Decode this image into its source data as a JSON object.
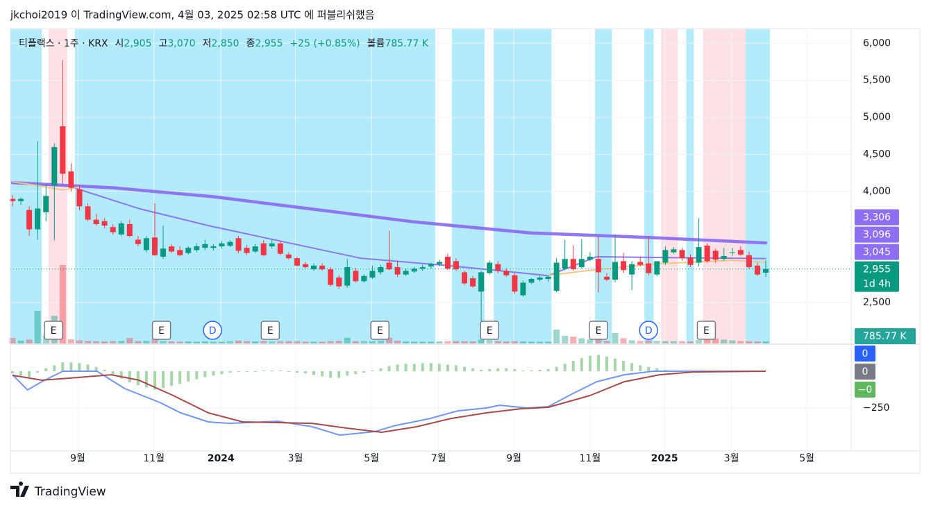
{
  "header": "jkchoi2019 이 TradingView.com, 4월 03, 2025 02:58 UTC 에 퍼블리쉬했음",
  "chart_data": {
    "type": "candlestick",
    "legend": {
      "symbol": "티플랙스 · 1주 · KRX",
      "items": [
        {
          "key": "시",
          "value": "2,905"
        },
        {
          "key": "고",
          "value": "3,070"
        },
        {
          "key": "저",
          "value": "2,850"
        },
        {
          "key": "종",
          "value": "2,955"
        }
      ],
      "change": "+25 (+0.85%)",
      "volume_key": "볼륨",
      "volume_value": "785.77 K",
      "value_color": "#089981"
    },
    "up_color": "#089981",
    "down_color": "#f23645",
    "candles": [
      [
        3900,
        3950,
        3800,
        3870
      ],
      [
        3870,
        3920,
        3820,
        3900
      ],
      [
        3750,
        3800,
        3400,
        3490
      ],
      [
        3490,
        4680,
        3350,
        3770
      ],
      [
        3720,
        4100,
        3600,
        3940
      ],
      [
        4080,
        4650,
        3340,
        4600
      ],
      [
        4880,
        5770,
        4100,
        4240
      ],
      [
        4270,
        4380,
        4000,
        4050
      ],
      [
        4030,
        4080,
        3750,
        3800
      ],
      [
        3800,
        3840,
        3600,
        3620
      ],
      [
        3620,
        3700,
        3540,
        3560
      ],
      [
        3600,
        3640,
        3500,
        3540
      ],
      [
        3520,
        3560,
        3420,
        3450
      ],
      [
        3420,
        3600,
        3400,
        3570
      ],
      [
        3560,
        3620,
        3380,
        3400
      ],
      [
        3350,
        3400,
        3260,
        3290
      ],
      [
        3210,
        3400,
        3180,
        3370
      ],
      [
        3380,
        3840,
        3130,
        3140
      ],
      [
        3120,
        3540,
        3090,
        3230
      ],
      [
        3260,
        3290,
        3170,
        3190
      ],
      [
        3210,
        3260,
        3130,
        3140
      ],
      [
        3170,
        3260,
        3150,
        3240
      ],
      [
        3210,
        3300,
        3180,
        3260
      ],
      [
        3240,
        3350,
        3210,
        3290
      ],
      [
        3240,
        3290,
        3200,
        3260
      ],
      [
        3260,
        3330,
        3230,
        3300
      ],
      [
        3270,
        3340,
        3250,
        3320
      ],
      [
        3370,
        3400,
        3170,
        3200
      ],
      [
        3240,
        3280,
        3140,
        3170
      ],
      [
        3190,
        3290,
        3170,
        3260
      ],
      [
        3300,
        3340,
        3130,
        3140
      ],
      [
        3260,
        3350,
        3230,
        3300
      ],
      [
        3300,
        3340,
        3140,
        3160
      ],
      [
        3150,
        3180,
        3080,
        3100
      ],
      [
        3100,
        3120,
        2990,
        3000
      ],
      [
        3020,
        3050,
        2960,
        2980
      ],
      [
        2950,
        3030,
        2930,
        3000
      ],
      [
        3000,
        3030,
        2930,
        2950
      ],
      [
        2950,
        2980,
        2720,
        2740
      ],
      [
        2840,
        2870,
        2690,
        2720
      ],
      [
        2730,
        3090,
        2700,
        2980
      ],
      [
        2930,
        2970,
        2770,
        2790
      ],
      [
        2790,
        2880,
        2770,
        2860
      ],
      [
        2840,
        3000,
        2820,
        2930
      ],
      [
        2910,
        3010,
        2880,
        2980
      ],
      [
        3040,
        3470,
        2940,
        2950
      ],
      [
        2980,
        3070,
        2850,
        2880
      ],
      [
        2880,
        2960,
        2860,
        2930
      ],
      [
        2920,
        2980,
        2900,
        2960
      ],
      [
        2960,
        3010,
        2930,
        2980
      ],
      [
        2990,
        3040,
        2960,
        3020
      ],
      [
        3020,
        3080,
        2990,
        3050
      ],
      [
        3120,
        3160,
        2940,
        2960
      ],
      [
        3060,
        3100,
        2930,
        2950
      ],
      [
        2910,
        2930,
        2740,
        2760
      ],
      [
        2830,
        2860,
        2700,
        2720
      ],
      [
        2650,
        2930,
        2250,
        2910
      ],
      [
        2900,
        3070,
        2880,
        3040
      ],
      [
        3020,
        3060,
        2900,
        2930
      ],
      [
        2930,
        2960,
        2850,
        2870
      ],
      [
        2870,
        2900,
        2620,
        2650
      ],
      [
        2600,
        2800,
        2580,
        2770
      ],
      [
        2770,
        2830,
        2750,
        2820
      ],
      [
        2810,
        2860,
        2790,
        2840
      ],
      [
        2820,
        2870,
        2780,
        2850
      ],
      [
        2660,
        3100,
        2640,
        3040
      ],
      [
        2960,
        3350,
        2940,
        3090
      ],
      [
        3090,
        3270,
        2930,
        2950
      ],
      [
        2980,
        3360,
        2960,
        3090
      ],
      [
        3080,
        3180,
        3060,
        3120
      ],
      [
        3090,
        3400,
        2640,
        2910
      ],
      [
        2850,
        2900,
        2790,
        2810
      ],
      [
        2810,
        3420,
        2780,
        3050
      ],
      [
        3060,
        3170,
        2900,
        2940
      ],
      [
        2880,
        3060,
        2670,
        3020
      ],
      [
        3050,
        3120,
        2990,
        3010
      ],
      [
        3030,
        3400,
        2870,
        2900
      ],
      [
        2880,
        3050,
        2860,
        3060
      ],
      [
        3040,
        3260,
        3010,
        3210
      ],
      [
        3180,
        3250,
        3160,
        3220
      ],
      [
        3210,
        3240,
        3070,
        3100
      ],
      [
        3110,
        3150,
        2980,
        3010
      ],
      [
        3040,
        3640,
        2990,
        3250
      ],
      [
        3270,
        3300,
        3040,
        3060
      ],
      [
        3200,
        3230,
        3040,
        3080
      ],
      [
        3090,
        3240,
        3060,
        3130
      ],
      [
        3170,
        3240,
        3130,
        3180
      ],
      [
        3210,
        3260,
        3130,
        3150
      ],
      [
        3140,
        3190,
        2960,
        2980
      ],
      [
        3000,
        3040,
        2860,
        2880
      ],
      [
        2905,
        3070,
        2850,
        2955
      ]
    ],
    "xlim": [
      -0.25,
      100.2
    ],
    "xticks": [
      {
        "value": 7.8,
        "label": "9월"
      },
      {
        "value": 16.9,
        "label": "11월"
      },
      {
        "value": 24.9,
        "label": "2024"
      },
      {
        "value": 33.8,
        "label": "3월"
      },
      {
        "value": 42.9,
        "label": "5월"
      },
      {
        "value": 50.9,
        "label": "7월"
      },
      {
        "value": 59.9,
        "label": "9월"
      },
      {
        "value": 69.0,
        "label": "11월"
      },
      {
        "value": 77.9,
        "label": "2025"
      },
      {
        "value": 85.9,
        "label": "3월"
      },
      {
        "value": 94.9,
        "label": "5월"
      }
    ],
    "ylim": [
      1950,
      6190
    ],
    "yticks": [
      {
        "value": 6000,
        "label": "6,000"
      },
      {
        "value": 5500,
        "label": "5,500"
      },
      {
        "value": 5000,
        "label": "5,000"
      },
      {
        "value": 4500,
        "label": "4,500"
      },
      {
        "value": 4000,
        "label": "4,000"
      },
      {
        "value": 2500,
        "label": "2,500"
      }
    ],
    "grid": true,
    "bands": [
      {
        "from": -0.25,
        "to": 3.5,
        "color": "#b2ebf9"
      },
      {
        "from": 4.3,
        "to": 6.55,
        "color": "#fde2e5"
      },
      {
        "from": 7.46,
        "to": 50.5,
        "color": "#b2ebf9"
      },
      {
        "from": 52.5,
        "to": 56.4,
        "color": "#b2ebf9"
      },
      {
        "from": 57.5,
        "to": 64.4,
        "color": "#b2ebf9"
      },
      {
        "from": 69.6,
        "to": 71.6,
        "color": "#b2ebf9"
      },
      {
        "from": 75.5,
        "to": 76.6,
        "color": "#b2ebf9"
      },
      {
        "from": 77.5,
        "to": 79.5,
        "color": "#fde2e5"
      },
      {
        "from": 80.5,
        "to": 81.4,
        "color": "#b2ebf9"
      },
      {
        "from": 82.5,
        "to": 83.5,
        "color": "#fde2e5"
      },
      {
        "from": 83.5,
        "to": 87.6,
        "color": "#fde2e5"
      },
      {
        "from": 87.6,
        "to": 90.5,
        "color": "#b2ebf9"
      }
    ],
    "volume": {
      "lim": [
        0,
        30000
      ],
      "last_label": "785.77 K",
      "color": "#26a69a",
      "values": [
        2100,
        1100,
        1500,
        12500,
        3000,
        10600,
        30000,
        1600,
        1200,
        1000,
        900,
        800,
        900,
        1000,
        2100,
        900,
        1000,
        1600,
        900,
        800,
        700,
        800,
        700,
        800,
        700,
        700,
        800,
        1100,
        900,
        800,
        900,
        700,
        800,
        900,
        800,
        700,
        700,
        700,
        900,
        1000,
        2200,
        900,
        800,
        900,
        1000,
        2200,
        1100,
        800,
        700,
        700,
        700,
        800,
        900,
        900,
        900,
        800,
        1500,
        1300,
        900,
        800,
        900,
        800,
        700,
        700,
        700,
        5300,
        2900,
        2600,
        2000,
        1500,
        1800,
        1000,
        4000,
        2000,
        1200,
        1000,
        1200,
        1000,
        900,
        900,
        900,
        800,
        1300,
        1500,
        1900,
        1500,
        1200,
        900,
        900,
        800,
        785.77
      ]
    },
    "moving_averages": [
      {
        "color": "#8c6ff2",
        "width": 4.5,
        "x": [
          0,
          12,
          24,
          36,
          48,
          62,
          76,
          90
        ],
        "values": [
          4120,
          4050,
          3930,
          3760,
          3590,
          3440,
          3380,
          3306
        ],
        "last_label": "3,306"
      },
      {
        "color": "#8c6ff2",
        "width": 2,
        "x": [
          0,
          6.8,
          15.1,
          23.4,
          33.3,
          41.6,
          51.6,
          64.0,
          69.8,
          81.4,
          90
        ],
        "values": [
          4110,
          4070,
          3770,
          3540,
          3300,
          3100,
          3005,
          2865,
          3120,
          3105,
          3096
        ],
        "last_label": "3,096"
      },
      {
        "color": "#f7c47f",
        "width": 2,
        "x": [
          0,
          3,
          6,
          8,
          9,
          64,
          70,
          77,
          86,
          90
        ],
        "values": [
          4130,
          4080,
          4020,
          4060,
          null,
          2870,
          2950,
          3025,
          3070,
          3045
        ],
        "last_label": "3,045"
      }
    ],
    "ma_label_color": "#8c6ff2",
    "last_price": {
      "value": 2955,
      "label": "2,955",
      "countdown": "1d 4h",
      "color": "#089981"
    },
    "events": [
      {
        "label": "E",
        "x": 4.9
      },
      {
        "label": "E",
        "x": 17.8
      },
      {
        "label": "D",
        "x": 23.9
      },
      {
        "label": "E",
        "x": 30.8
      },
      {
        "label": "E",
        "x": 43.9
      },
      {
        "label": "E",
        "x": 57.0
      },
      {
        "label": "E",
        "x": 70.0
      },
      {
        "label": "D",
        "x": 76.0
      },
      {
        "label": "E",
        "x": 82.9
      }
    ],
    "macd": {
      "ylim": [
        -542,
        179
      ],
      "yticks": [
        {
          "value": -250,
          "label": "−250"
        }
      ],
      "macd": {
        "color": "#6f95f5",
        "x": [
          0,
          1.8,
          3.5,
          6.0,
          10.1,
          13.4,
          17.6,
          20.1,
          23.4,
          25.9,
          31.7,
          35.8,
          39.1,
          43.3,
          45.8,
          49.9,
          53.2,
          56.6,
          58.2,
          61.5,
          64.0,
          66.5,
          69.8,
          73.1,
          76.5,
          90
        ],
        "values": [
          -24,
          -127,
          -71,
          0,
          0,
          -118,
          -212,
          -283,
          -344,
          -354,
          -340,
          -377,
          -434,
          -410,
          -368,
          -321,
          -269,
          -250,
          -231,
          -250,
          -241,
          -165,
          -71,
          -24,
          0,
          0
        ]
      },
      "signal": {
        "color": "#a84848",
        "x": [
          0,
          3.5,
          6.8,
          11.8,
          15.1,
          19.2,
          23.4,
          27.5,
          35.8,
          40,
          44.1,
          48.3,
          52.4,
          56.6,
          60.7,
          64,
          69,
          73.1,
          77.3,
          81.4,
          90
        ],
        "values": [
          -28,
          -61,
          -47,
          -24,
          -61,
          -165,
          -283,
          -344,
          -354,
          -387,
          -415,
          -377,
          -321,
          -283,
          -255,
          -245,
          -165,
          -71,
          -24,
          -5,
          0
        ]
      },
      "histogram": {
        "color": "#a5d6a7",
        "values": [
          -15,
          -30,
          -40,
          -10,
          20,
          40,
          60,
          60,
          55,
          45,
          30,
          10,
          -20,
          -50,
          -75,
          -95,
          -110,
          -125,
          -115,
          -100,
          -85,
          -70,
          -55,
          -40,
          -30,
          -20,
          -10,
          -5,
          -5,
          -5,
          5,
          5,
          5,
          -5,
          -10,
          -15,
          -25,
          -35,
          -45,
          -45,
          -30,
          -20,
          -10,
          5,
          20,
          35,
          45,
          50,
          50,
          55,
          55,
          50,
          45,
          40,
          30,
          20,
          10,
          15,
          20,
          20,
          15,
          5,
          5,
          10,
          15,
          30,
          50,
          70,
          90,
          105,
          110,
          100,
          85,
          70,
          55,
          40,
          30,
          20,
          10,
          5,
          3,
          2,
          2,
          1,
          1,
          1,
          1,
          0,
          0,
          0,
          0
        ]
      },
      "badges": [
        {
          "text": "0",
          "color": "#2962ff"
        },
        {
          "text": "0",
          "color": "#787b86"
        },
        {
          "text": "−0",
          "color": "#5fb760"
        }
      ]
    }
  },
  "footer": {
    "logo": "TradingView"
  }
}
